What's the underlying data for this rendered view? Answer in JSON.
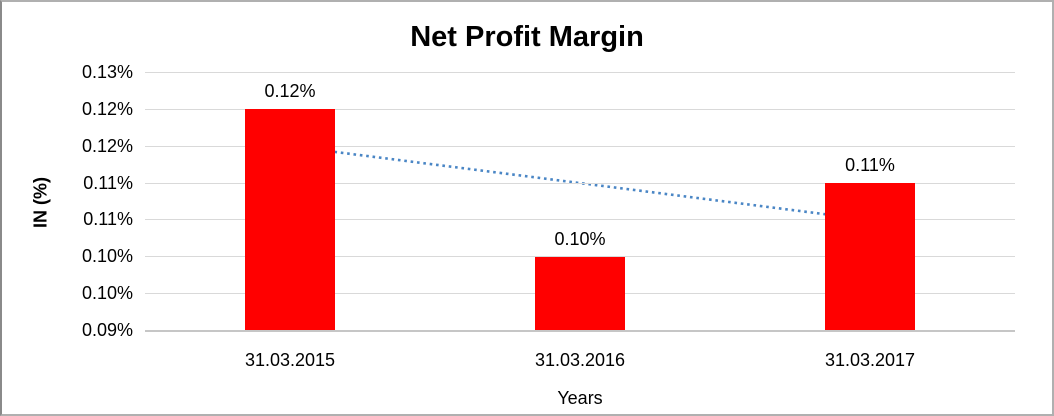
{
  "chart_data": {
    "type": "bar",
    "title": "Net Profit Margin",
    "xlabel": "Years",
    "ylabel": "IN (%)",
    "categories": [
      "31.03.2015",
      "31.03.2016",
      "31.03.2017"
    ],
    "values": [
      0.12,
      0.1,
      0.11
    ],
    "data_labels": [
      "0.12%",
      "0.10%",
      "0.11%"
    ],
    "y_tick_labels": [
      "0.13%",
      "0.12%",
      "0.12%",
      "0.11%",
      "0.11%",
      "0.10%",
      "0.10%",
      "0.09%"
    ],
    "y_tick_values": [
      0.125,
      0.12,
      0.115,
      0.11,
      0.105,
      0.1,
      0.095,
      0.09
    ],
    "ylim": [
      0.09,
      0.125
    ],
    "trendline": {
      "type": "linear",
      "style": "dotted",
      "values": [
        0.115,
        0.11,
        0.105
      ]
    },
    "grid": true,
    "legend": false,
    "colors": {
      "bar": "#ff0000",
      "trendline": "#4a86c5",
      "gridline": "#d9d9d9",
      "axis_line": "#c6c6c6",
      "text": "#000000",
      "frame_border": "#b0b0b0"
    }
  }
}
